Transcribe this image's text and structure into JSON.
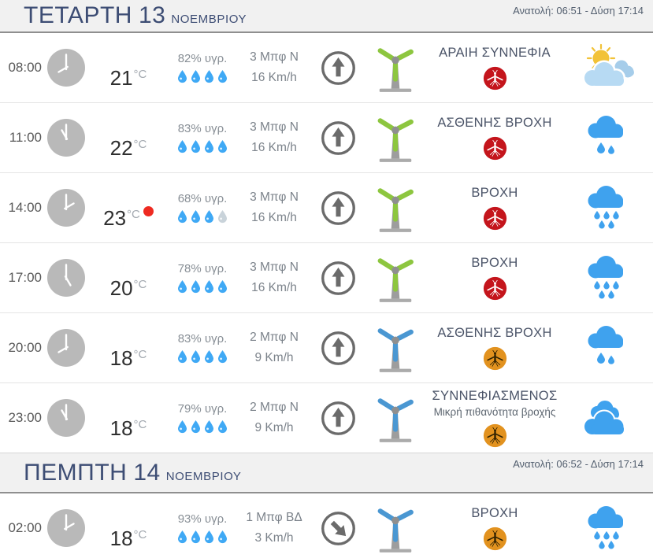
{
  "colors": {
    "header_text": "#3d4d74",
    "clock_day": "#b9b9b9",
    "clock_night": "#454545",
    "drop_active": "#3fa9f5",
    "drop_inactive": "#c9d3da",
    "turbine_green": "#8dc63f",
    "turbine_blue": "#4a97d2",
    "mosquito_red": "#c4151c",
    "mosquito_orange": "#e2921f",
    "max_temp_dot": "#ee2a21",
    "rain_cloud": "#3fa2ee",
    "sun": "#f2c237"
  },
  "days": [
    {
      "name": "ΤΕΤΑΡΤΗ",
      "number": "13",
      "month": "ΝΟΕΜΒΡΙΟΥ",
      "sun_info": "Ανατολή: 06:51 - Δύση 17:14",
      "rows": [
        {
          "time": "08:00",
          "clock": "day",
          "temp": "21",
          "temp_unit": "°C",
          "max": false,
          "humidity": "82% υγρ.",
          "drops_active": 4,
          "wind_force": "3 Μπφ N",
          "wind_speed": "16 Km/h",
          "arrow_deg": 0,
          "turbine": "green",
          "description": "ΑΡΑΙΗ ΣΥΝΝΕΦΙΑ",
          "sub_description": "",
          "mosquito": "red",
          "icon": "sun-clouds"
        },
        {
          "time": "11:00",
          "clock": "day",
          "temp": "22",
          "temp_unit": "°C",
          "max": false,
          "humidity": "83% υγρ.",
          "drops_active": 4,
          "wind_force": "3 Μπφ N",
          "wind_speed": "16 Km/h",
          "arrow_deg": 0,
          "turbine": "green",
          "description": "ΑΣΘΕΝΗΣ ΒΡΟΧΗ",
          "sub_description": "",
          "mosquito": "red",
          "icon": "rain-light"
        },
        {
          "time": "14:00",
          "clock": "day",
          "temp": "23",
          "temp_unit": "°C",
          "max": true,
          "humidity": "68% υγρ.",
          "drops_active": 3,
          "wind_force": "3 Μπφ N",
          "wind_speed": "16 Km/h",
          "arrow_deg": 0,
          "turbine": "green",
          "description": "ΒΡΟΧΗ",
          "sub_description": "",
          "mosquito": "red",
          "icon": "rain-heavy"
        },
        {
          "time": "17:00",
          "clock": "day",
          "temp": "20",
          "temp_unit": "°C",
          "max": false,
          "humidity": "78% υγρ.",
          "drops_active": 4,
          "wind_force": "3 Μπφ N",
          "wind_speed": "16 Km/h",
          "arrow_deg": 0,
          "turbine": "green",
          "description": "ΒΡΟΧΗ",
          "sub_description": "",
          "mosquito": "red",
          "icon": "rain-heavy"
        },
        {
          "time": "20:00",
          "clock": "night",
          "temp": "18",
          "temp_unit": "°C",
          "max": false,
          "humidity": "83% υγρ.",
          "drops_active": 4,
          "wind_force": "2 Μπφ N",
          "wind_speed": "9 Km/h",
          "arrow_deg": 0,
          "turbine": "blue",
          "description": "ΑΣΘΕΝΗΣ ΒΡΟΧΗ",
          "sub_description": "",
          "mosquito": "orange",
          "icon": "rain-light"
        },
        {
          "time": "23:00",
          "clock": "night",
          "temp": "18",
          "temp_unit": "°C",
          "max": false,
          "humidity": "79% υγρ.",
          "drops_active": 4,
          "wind_force": "2 Μπφ N",
          "wind_speed": "9 Km/h",
          "arrow_deg": 0,
          "turbine": "blue",
          "description": "ΣΥΝΝΕΦΙΑΣΜΕΝΟΣ",
          "sub_description": "Μικρή πιθανότητα βροχής",
          "mosquito": "orange",
          "icon": "clouds"
        }
      ]
    },
    {
      "name": "ΠΕΜΠΤΗ",
      "number": "14",
      "month": "ΝΟΕΜΒΡΙΟΥ",
      "sun_info": "Ανατολή: 06:52 - Δύση 17:14",
      "rows": [
        {
          "time": "02:00",
          "clock": "night",
          "temp": "18",
          "temp_unit": "°C",
          "max": false,
          "humidity": "93% υγρ.",
          "drops_active": 4,
          "wind_force": "1 Μπφ ΒΔ",
          "wind_speed": "3 Km/h",
          "arrow_deg": 135,
          "turbine": "blue",
          "description": "ΒΡΟΧΗ",
          "sub_description": "",
          "mosquito": "orange",
          "icon": "rain-heavy"
        }
      ]
    }
  ]
}
